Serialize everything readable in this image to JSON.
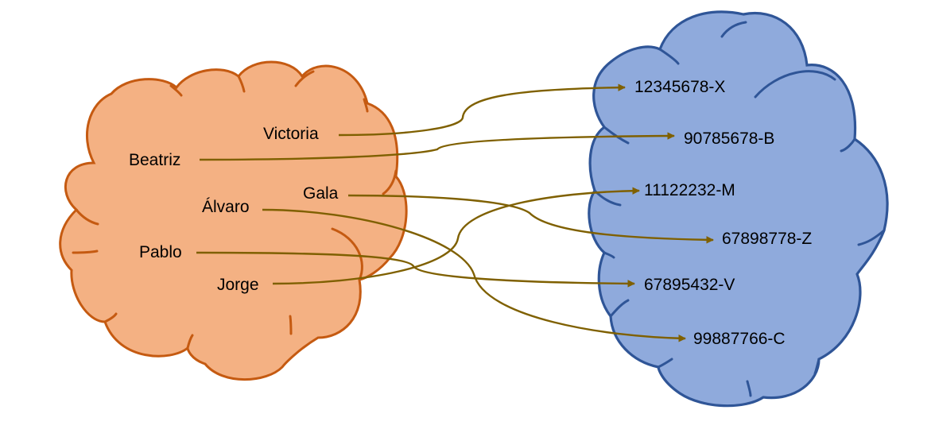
{
  "colors": {
    "names_cloud_fill": "#f4b183",
    "names_cloud_outline": "#c55a11",
    "ids_cloud_fill": "#8faadc",
    "ids_cloud_outline": "#2f5597",
    "arrow": "#7f6000"
  },
  "names": [
    "Victoria",
    "Beatriz",
    "Gala",
    "Álvaro",
    "Pablo",
    "Jorge"
  ],
  "ids": [
    "12345678-X",
    "90785678-B",
    "11122232-M",
    "67898778-Z",
    "67895432-V",
    "99887766-C"
  ],
  "mappings": [
    {
      "from": "Victoria",
      "to": "12345678-X"
    },
    {
      "from": "Beatriz",
      "to": "90785678-B"
    },
    {
      "from": "Gala",
      "to": "67898778-Z"
    },
    {
      "from": "Álvaro",
      "to": "99887766-C"
    },
    {
      "from": "Pablo",
      "to": "67895432-V"
    },
    {
      "from": "Jorge",
      "to": "11122232-M"
    }
  ]
}
